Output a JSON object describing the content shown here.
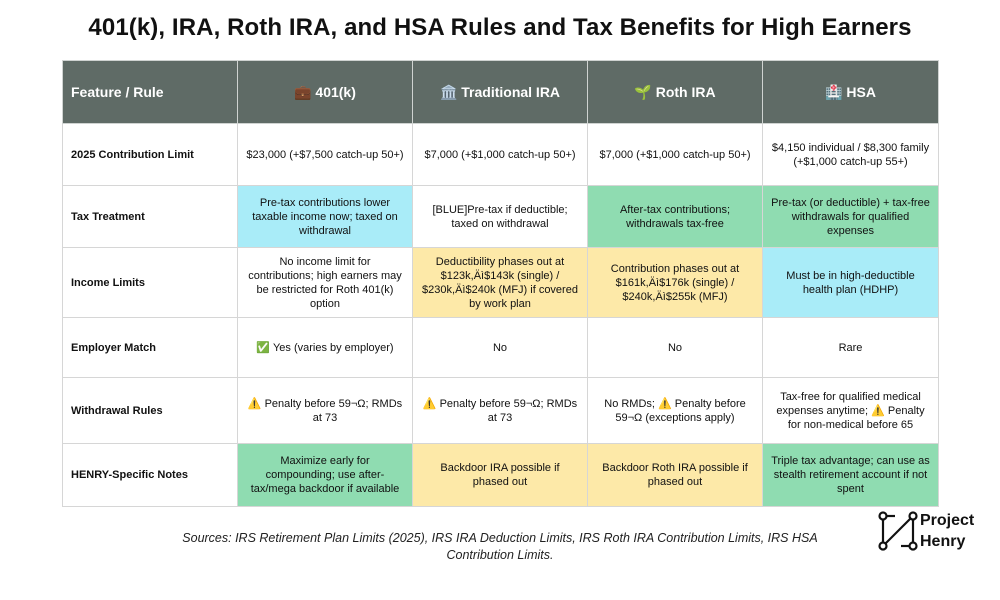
{
  "header": {
    "title": "401(k), IRA, Roth IRA, and HSA Rules and Tax Benefits for High Earners"
  },
  "table": {
    "columns": [
      "Feature / Rule",
      "💼 401(k)",
      "🏛️ Traditional IRA",
      "🌱 Roth IRA",
      "🏥 HSA"
    ],
    "rows": [
      [
        "2025 Contribution Limit",
        "$23,000 (+$7,500 catch-up 50+)",
        "$7,000 (+$1,000 catch-up 50+)",
        "$7,000 (+$1,000 catch-up 50+)",
        "$4,150 individual / $8,300 family (+$1,000 catch-up 55+)"
      ],
      [
        "Tax Treatment",
        "Pre-tax contributions lower taxable income now; taxed on withdrawal",
        "[BLUE]Pre-tax if deductible; taxed on withdrawal",
        "After-tax contributions; withdrawals tax-free",
        "Pre-tax (or deductible) + tax-free withdrawals for qualified expenses"
      ],
      [
        "Income Limits",
        "No income limit for contributions; high earners may be restricted for Roth 401(k) option",
        "Deductibility phases out at $123k,Äì$143k (single) / $230k,Äì$240k (MFJ) if covered by work plan",
        "Contribution phases out at $161k,Äì$176k (single) / $240k,Äì$255k (MFJ)",
        "Must be in high-deductible health plan (HDHP)"
      ],
      [
        "Employer Match",
        "✅ Yes (varies by employer)",
        "No",
        "No",
        "Rare"
      ],
      [
        "Withdrawal Rules",
        "⚠️ Penalty before 59¬Ω; RMDs at 73",
        "⚠️ Penalty before 59¬Ω; RMDs at 73",
        "No RMDs; ⚠️ Penalty before 59¬Ω (exceptions apply)",
        "Tax-free for qualified medical expenses anytime; ⚠️ Penalty for non-medical before 65"
      ],
      [
        "HENRY-Specific Notes",
        "Maximize early for compounding; use after-tax/mega backdoor if available",
        "Backdoor IRA possible if phased out",
        "Backdoor Roth IRA possible if phased out",
        "Triple tax advantage; can use as stealth retirement account if not spent"
      ]
    ]
  },
  "footer": {
    "sources": "Sources: IRS Retirement Plan Limits (2025), IRS IRA Deduction Limits, IRS Roth IRA Contribution Limits, IRS HSA Contribution Limits.",
    "logo_line1": "Project",
    "logo_line2": "Henry"
  }
}
